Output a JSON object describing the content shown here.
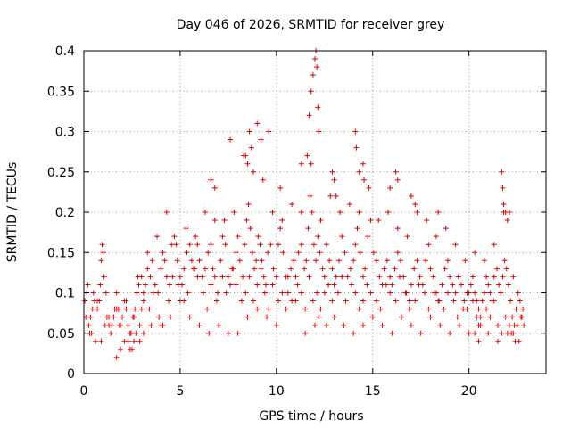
{
  "chart_data": {
    "type": "scatter",
    "title": "Day 046 of 2026, SRMTID for receiver grey",
    "xlabel": "GPS time / hours",
    "ylabel": "SRMTID / TECUs",
    "xlim": [
      0,
      24
    ],
    "ylim": [
      0,
      0.4
    ],
    "xticks": [
      "0",
      "5",
      "10",
      "15",
      "20"
    ],
    "yticks": [
      "0",
      "0.05",
      "0.1",
      "0.15",
      "0.2",
      "0.25",
      "0.3",
      "0.35",
      "0.4"
    ],
    "grid": true,
    "marker": "+",
    "color": "#e00000",
    "series": [
      {
        "x": [
          0.05,
          0.15,
          0.25,
          0.35,
          0.45,
          0.55,
          0.7,
          0.85,
          0.9,
          0.95,
          1.0,
          1.05,
          1.15,
          1.3,
          1.45,
          1.55,
          1.7,
          1.85,
          2.0,
          2.1,
          2.2,
          2.3,
          2.45,
          2.55,
          2.65,
          2.75,
          2.85,
          3.0,
          3.1,
          3.2,
          3.3,
          3.45,
          3.55,
          3.7,
          3.85,
          4.0,
          4.1,
          4.2,
          4.3,
          4.45,
          4.55,
          4.7,
          4.85,
          5.0,
          5.1,
          5.2,
          5.35,
          5.5,
          5.6,
          5.75,
          5.9,
          6.0,
          6.15,
          6.3,
          6.45,
          6.6,
          6.7,
          6.8,
          6.95,
          7.1,
          7.2,
          7.35,
          7.5,
          7.6,
          7.75,
          7.9,
          8.0,
          8.1,
          8.25,
          8.35,
          8.45,
          8.55,
          8.65,
          8.75,
          8.85,
          8.95,
          9.05,
          9.15,
          9.25,
          9.35,
          9.45,
          9.55,
          9.7,
          9.85,
          10.0,
          10.1,
          10.2,
          10.35,
          10.5,
          10.6,
          10.75,
          10.9,
          11.0,
          11.15,
          11.3,
          11.45,
          11.55,
          11.65,
          11.75,
          11.85,
          11.95,
          12.05,
          12.15,
          12.25,
          12.4,
          12.5,
          12.6,
          12.75,
          12.9,
          13.0,
          13.1,
          13.25,
          13.4,
          13.55,
          13.7,
          13.85,
          14.0,
          14.1,
          14.2,
          14.35,
          14.5,
          14.6,
          14.75,
          14.9,
          15.05,
          15.2,
          15.35,
          15.5,
          15.6,
          15.75,
          15.9,
          16.0,
          16.15,
          16.3,
          16.45,
          16.6,
          16.75,
          16.9,
          17.0,
          17.15,
          17.3,
          17.45,
          17.6,
          17.75,
          17.9,
          18.0,
          18.15,
          18.3,
          18.45,
          18.6,
          18.75,
          18.9,
          19.0,
          19.15,
          19.3,
          19.45,
          19.6,
          19.75,
          19.9,
          20.0,
          20.1,
          20.2,
          20.3,
          20.4,
          20.5,
          20.6,
          20.7,
          20.8,
          20.9,
          21.0,
          21.1,
          21.2,
          21.3,
          21.45,
          21.55,
          21.65,
          21.75,
          21.85,
          21.95,
          22.05,
          22.15,
          22.25,
          22.35,
          22.45,
          22.55,
          22.65,
          22.75,
          22.85,
          0.1,
          0.3,
          0.5,
          0.6,
          0.8,
          1.2,
          1.4,
          1.6,
          1.9,
          2.2,
          2.4,
          2.6,
          2.9,
          3.1,
          3.4,
          3.6,
          3.9,
          4.1,
          4.4,
          4.6,
          4.9,
          5.2,
          5.4,
          5.7,
          5.9,
          6.2,
          6.4,
          6.6,
          6.9,
          7.2,
          7.4,
          7.7,
          7.9,
          8.2,
          8.4,
          8.6,
          8.8,
          9.0,
          9.2,
          9.4,
          9.6,
          9.8,
          10.1,
          10.3,
          10.6,
          10.8,
          11.1,
          11.3,
          11.5,
          11.7,
          11.9,
          12.1,
          12.3,
          12.5,
          12.7,
          12.9,
          13.2,
          13.4,
          13.6,
          13.9,
          14.1,
          14.3,
          14.5,
          14.7,
          14.9,
          15.2,
          15.4,
          15.7,
          15.9,
          16.2,
          16.4,
          16.7,
          16.9,
          17.2,
          17.4,
          17.7,
          17.9,
          18.2,
          18.4,
          18.7,
          18.9,
          19.2,
          19.4,
          19.7,
          19.9,
          20.2,
          20.4,
          20.6,
          20.9,
          21.1,
          21.3,
          21.5,
          21.7,
          21.9,
          22.1,
          22.3,
          22.5,
          22.7,
          0.2,
          0.7,
          1.1,
          1.7,
          2.3,
          2.8,
          3.3,
          3.8,
          4.3,
          4.8,
          5.3,
          5.8,
          6.3,
          6.8,
          7.3,
          7.8,
          8.3,
          8.8,
          9.3,
          9.8,
          10.3,
          10.8,
          11.3,
          11.8,
          12.3,
          12.8,
          13.3,
          13.8,
          14.3,
          14.8,
          15.3,
          15.8,
          16.3,
          16.8,
          17.3,
          17.8,
          18.3,
          18.8,
          19.3,
          19.8,
          20.3,
          20.8,
          21.3,
          21.8,
          22.3,
          22.8,
          0.4,
          0.9,
          1.3,
          1.8,
          2.1,
          2.5,
          2.7,
          3.0,
          3.5,
          4.0,
          4.5,
          5.0,
          5.5,
          6.0,
          6.5,
          7.0,
          7.5,
          8.0,
          8.5,
          9.0,
          9.5,
          10.0,
          10.5,
          11.0,
          11.5,
          12.0,
          12.2,
          12.6,
          13.0,
          13.5,
          14.0,
          14.5,
          15.0,
          15.5,
          16.0,
          16.5,
          17.0,
          17.5,
          18.0,
          18.5,
          19.0,
          19.5,
          20.0,
          20.5,
          21.0,
          21.5,
          22.0,
          22.4,
          22.6,
          6.8,
          8.6,
          8.7,
          9.0,
          9.2,
          11.8,
          11.9,
          12.0,
          12.05,
          12.1,
          12.15,
          12.2,
          11.7,
          11.6,
          14.1,
          14.15,
          14.5,
          14.55,
          16.2,
          16.3,
          21.7,
          21.75,
          21.8,
          21.9,
          22.0,
          22.1,
          6.6,
          7.6,
          8.4,
          8.5,
          9.6,
          10.2,
          11.3,
          13.0,
          13.1,
          12.9,
          14.3,
          15.9,
          17.0,
          18.4,
          17.2,
          2.9,
          3.1,
          1.7,
          1.9,
          2.4,
          2.6,
          20.3,
          20.5,
          22.2,
          22.5
        ],
        "y": [
          0.09,
          0.1,
          0.06,
          0.07,
          0.08,
          0.09,
          0.08,
          0.11,
          0.14,
          0.16,
          0.15,
          0.12,
          0.1,
          0.07,
          0.06,
          0.07,
          0.08,
          0.06,
          0.07,
          0.09,
          0.08,
          0.06,
          0.05,
          0.07,
          0.08,
          0.1,
          0.11,
          0.12,
          0.1,
          0.11,
          0.13,
          0.12,
          0.14,
          0.11,
          0.1,
          0.13,
          0.15,
          0.14,
          0.12,
          0.11,
          0.16,
          0.17,
          0.14,
          0.12,
          0.11,
          0.13,
          0.15,
          0.16,
          0.14,
          0.13,
          0.16,
          0.14,
          0.12,
          0.13,
          0.15,
          0.16,
          0.13,
          0.12,
          0.1,
          0.14,
          0.17,
          0.16,
          0.12,
          0.11,
          0.13,
          0.15,
          0.17,
          0.14,
          0.12,
          0.16,
          0.19,
          0.21,
          0.18,
          0.15,
          0.13,
          0.14,
          0.17,
          0.16,
          0.14,
          0.12,
          0.11,
          0.15,
          0.16,
          0.13,
          0.12,
          0.16,
          0.18,
          0.15,
          0.12,
          0.1,
          0.13,
          0.14,
          0.12,
          0.15,
          0.16,
          0.13,
          0.14,
          0.18,
          0.22,
          0.2,
          0.16,
          0.14,
          0.17,
          0.15,
          0.13,
          0.12,
          0.16,
          0.14,
          0.13,
          0.11,
          0.12,
          0.14,
          0.17,
          0.15,
          0.12,
          0.13,
          0.14,
          0.16,
          0.18,
          0.15,
          0.12,
          0.13,
          0.17,
          0.19,
          0.15,
          0.14,
          0.12,
          0.11,
          0.13,
          0.14,
          0.12,
          0.11,
          0.13,
          0.15,
          0.14,
          0.12,
          0.1,
          0.09,
          0.11,
          0.13,
          0.14,
          0.12,
          0.11,
          0.14,
          0.16,
          0.13,
          0.12,
          0.1,
          0.09,
          0.11,
          0.13,
          0.14,
          0.12,
          0.11,
          0.1,
          0.12,
          0.11,
          0.09,
          0.08,
          0.1,
          0.11,
          0.12,
          0.1,
          0.09,
          0.08,
          0.07,
          0.09,
          0.1,
          0.12,
          0.11,
          0.1,
          0.09,
          0.12,
          0.13,
          0.11,
          0.1,
          0.12,
          0.14,
          0.13,
          0.11,
          0.09,
          0.07,
          0.06,
          0.08,
          0.1,
          0.09,
          0.07,
          0.06,
          0.07,
          0.05,
          0.1,
          0.04,
          0.09,
          0.07,
          0.05,
          0.08,
          0.06,
          0.09,
          0.05,
          0.07,
          0.06,
          0.09,
          0.08,
          0.1,
          0.07,
          0.06,
          0.09,
          0.12,
          0.11,
          0.09,
          0.1,
          0.13,
          0.12,
          0.1,
          0.08,
          0.11,
          0.09,
          0.12,
          0.1,
          0.13,
          0.11,
          0.09,
          0.1,
          0.12,
          0.09,
          0.11,
          0.13,
          0.1,
          0.08,
          0.11,
          0.09,
          0.1,
          0.12,
          0.09,
          0.11,
          0.1,
          0.08,
          0.12,
          0.09,
          0.1,
          0.08,
          0.1,
          0.11,
          0.09,
          0.1,
          0.12,
          0.09,
          0.11,
          0.1,
          0.08,
          0.09,
          0.11,
          0.1,
          0.09,
          0.08,
          0.11,
          0.1,
          0.09,
          0.12,
          0.1,
          0.08,
          0.09,
          0.11,
          0.1,
          0.08,
          0.1,
          0.09,
          0.08,
          0.1,
          0.09,
          0.07,
          0.08,
          0.1,
          0.09,
          0.07,
          0.06,
          0.08,
          0.07,
          0.09,
          0.06,
          0.05,
          0.07,
          0.06,
          0.05,
          0.06,
          0.07,
          0.11,
          0.09,
          0.06,
          0.1,
          0.04,
          0.12,
          0.15,
          0.17,
          0.2,
          0.16,
          0.18,
          0.17,
          0.2,
          0.19,
          0.19,
          0.2,
          0.27,
          0.25,
          0.24,
          0.2,
          0.19,
          0.21,
          0.2,
          0.26,
          0.19,
          0.22,
          0.2,
          0.21,
          0.2,
          0.23,
          0.19,
          0.2,
          0.18,
          0.17,
          0.2,
          0.19,
          0.17,
          0.18,
          0.16,
          0.14,
          0.15,
          0.14,
          0.16,
          0.2,
          0.12,
          0.08,
          0.05,
          0.04,
          0.06,
          0.08,
          0.04,
          0.03,
          0.05,
          0.08,
          0.06,
          0.06,
          0.07,
          0.09,
          0.07,
          0.06,
          0.05,
          0.06,
          0.05,
          0.05,
          0.07,
          0.08,
          0.07,
          0.06,
          0.08,
          0.09,
          0.05,
          0.06,
          0.07,
          0.06,
          0.07,
          0.06,
          0.05,
          0.06,
          0.07,
          0.06,
          0.05,
          0.07,
          0.06,
          0.05,
          0.07,
          0.06,
          0.05,
          0.06,
          0.05,
          0.06,
          0.05,
          0.04,
          0.05,
          0.04,
          0.04,
          0.23,
          0.3,
          0.28,
          0.31,
          0.29,
          0.35,
          0.37,
          0.39,
          0.4,
          0.38,
          0.33,
          0.3,
          0.32,
          0.27,
          0.3,
          0.28,
          0.26,
          0.24,
          0.25,
          0.24,
          0.25,
          0.23,
          0.21,
          0.2,
          0.19,
          0.2,
          0.24,
          0.29,
          0.27,
          0.26,
          0.3,
          0.23,
          0.26,
          0.24,
          0.22,
          0.25,
          0.25,
          0.23,
          0.22,
          0.2,
          0.21,
          0.04,
          0.05,
          0.02,
          0.03,
          0.03,
          0.04,
          0.05,
          0.04,
          0.05,
          0.06
        ]
      }
    ]
  }
}
